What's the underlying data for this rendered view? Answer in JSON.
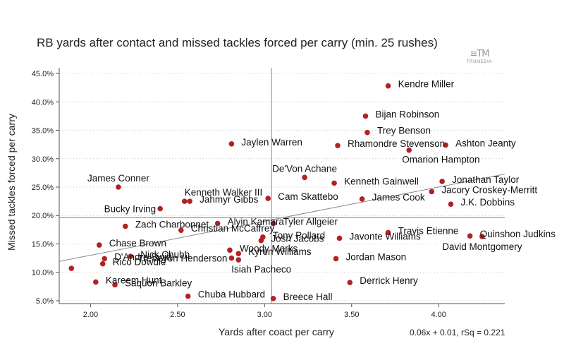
{
  "chart_data": {
    "type": "scatter",
    "title": "RB yards after contact and missed tackles forced per carry (min. 25 rushes)",
    "xlabel": "Yards after coact per carry",
    "ylabel": "Missed tackles forced per carry",
    "xlim": [
      1.82,
      4.38
    ],
    "ylim": [
      4.5,
      45.5
    ],
    "xticks": [
      2.0,
      2.5,
      3.0,
      3.5,
      4.0
    ],
    "xtick_labels": [
      "2.00",
      "2.50",
      "3.00",
      "3.50",
      "4.00"
    ],
    "yticks": [
      5,
      10,
      15,
      20,
      25,
      30,
      35,
      40,
      45
    ],
    "ytick_labels": [
      "5.0%",
      "10.0%",
      "15.0%",
      "20.0%",
      "25.0%",
      "30.0%",
      "35.0%",
      "40.0%",
      "45.0%"
    ],
    "x_mean": 3.04,
    "y_mean": 19.6,
    "trendline": {
      "slope": 0.06,
      "intercept": 0.01,
      "rsq": 0.221,
      "label": "0.06x + 0.01, rSq = 0.221"
    },
    "point_color": "#b22222",
    "points": [
      {
        "name": "Kendre Miller",
        "x": 3.71,
        "y": 42.8,
        "pos": "right"
      },
      {
        "name": "Bijan Robinson",
        "x": 3.58,
        "y": 37.5,
        "pos": "right"
      },
      {
        "name": "Trey Benson",
        "x": 3.59,
        "y": 34.6,
        "pos": "right"
      },
      {
        "name": "Jaylen Warren",
        "x": 2.81,
        "y": 32.6,
        "pos": "right"
      },
      {
        "name": "Rhamondre Stevenson",
        "x": 3.42,
        "y": 32.3,
        "pos": "right"
      },
      {
        "name": "Ashton Jeanty",
        "x": 4.04,
        "y": 32.4,
        "pos": "right"
      },
      {
        "name": "Omarion Hampton",
        "x": 3.83,
        "y": 31.5,
        "pos": "below-right"
      },
      {
        "name": "James Conner",
        "x": 2.16,
        "y": 25.0,
        "pos": "above"
      },
      {
        "name": "De'Von Achane",
        "x": 3.23,
        "y": 26.7,
        "pos": "above"
      },
      {
        "name": "Kenneth Gainwell",
        "x": 3.4,
        "y": 25.7,
        "pos": "right"
      },
      {
        "name": "Jonathan Taylor",
        "x": 4.02,
        "y": 26.0,
        "pos": "right"
      },
      {
        "name": "Jacory Croskey-Merritt",
        "x": 3.96,
        "y": 24.2,
        "pos": "right"
      },
      {
        "name": "Kenneth Walker III",
        "x": 2.54,
        "y": 22.5,
        "pos": "above-right"
      },
      {
        "name": "Jahmyr Gibbs",
        "x": 2.57,
        "y": 22.5,
        "pos": "right"
      },
      {
        "name": "Cam Skattebo",
        "x": 3.02,
        "y": 23.0,
        "pos": "right"
      },
      {
        "name": "James Cook",
        "x": 3.56,
        "y": 22.9,
        "pos": "right"
      },
      {
        "name": "J.K. Dobbins",
        "x": 4.07,
        "y": 22.0,
        "pos": "right"
      },
      {
        "name": "Bucky Irving",
        "x": 2.4,
        "y": 21.2,
        "pos": "left"
      },
      {
        "name": "Alvin Kamara",
        "x": 2.73,
        "y": 18.6,
        "pos": "right"
      },
      {
        "name": "Tyler Allgeier",
        "x": 3.05,
        "y": 18.6,
        "pos": "right"
      },
      {
        "name": "Zach Charbonnet",
        "x": 2.2,
        "y": 18.1,
        "pos": "right"
      },
      {
        "name": "Christian McCaffrey",
        "x": 2.52,
        "y": 17.4,
        "pos": "right"
      },
      {
        "name": "Travis Etienne",
        "x": 3.71,
        "y": 17.0,
        "pos": "right"
      },
      {
        "name": "Quinshon Judkins",
        "x": 4.18,
        "y": 16.4,
        "pos": "right"
      },
      {
        "name": "Tony Pollard",
        "x": 2.99,
        "y": 16.2,
        "pos": "right"
      },
      {
        "name": "Javonte Williams",
        "x": 3.43,
        "y": 16.0,
        "pos": "right"
      },
      {
        "name": "David Montgomery",
        "x": 4.25,
        "y": 16.3,
        "pos": "below"
      },
      {
        "name": "Josh Jacobs",
        "x": 2.98,
        "y": 15.6,
        "pos": "right"
      },
      {
        "name": "Chase Brown",
        "x": 2.05,
        "y": 14.8,
        "pos": "right"
      },
      {
        "name": "Woody Marks",
        "x": 2.8,
        "y": 13.9,
        "pos": "right"
      },
      {
        "name": "D'Andre Swift",
        "x": 2.08,
        "y": 12.4,
        "pos": "right"
      },
      {
        "name": "Nick Chubb",
        "x": 2.23,
        "y": 12.8,
        "pos": "right"
      },
      {
        "name": "Kyren Williams",
        "x": 2.85,
        "y": 13.3,
        "pos": "right"
      },
      {
        "name": "Jordan Mason",
        "x": 3.41,
        "y": 12.4,
        "pos": "right"
      },
      {
        "name": "TreVeyon Henderson",
        "x": 2.81,
        "y": 12.5,
        "pos": "left"
      },
      {
        "name": "Isiah Pacheco",
        "x": 2.85,
        "y": 12.2,
        "pos": "below-right"
      },
      {
        "name": "Rico Dowdle",
        "x": 2.07,
        "y": 11.5,
        "pos": "right"
      },
      {
        "name": "Unlabeled 1",
        "x": 1.89,
        "y": 10.7,
        "pos": "none"
      },
      {
        "name": "Kareem Hunt",
        "x": 2.03,
        "y": 8.3,
        "pos": "right"
      },
      {
        "name": "Derrick Henry",
        "x": 3.49,
        "y": 8.2,
        "pos": "right"
      },
      {
        "name": "Saquon Barkley",
        "x": 2.14,
        "y": 7.8,
        "pos": "right"
      },
      {
        "name": "Chuba Hubbard",
        "x": 2.56,
        "y": 5.8,
        "pos": "right"
      },
      {
        "name": "Breece Hall",
        "x": 3.05,
        "y": 5.4,
        "pos": "right"
      }
    ]
  },
  "branding": {
    "logo_text": "TRUMEDIA",
    "logo_mark": "≡TM"
  }
}
